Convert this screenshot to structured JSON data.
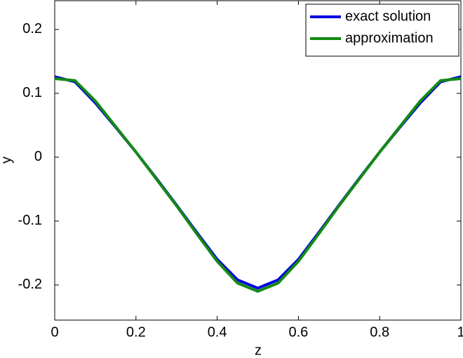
{
  "chart_data": {
    "type": "line",
    "x_label": "z",
    "y_label": "y",
    "x": [
      0,
      0.05,
      0.1,
      0.15,
      0.2,
      0.25,
      0.3,
      0.35,
      0.4,
      0.45,
      0.5,
      0.55,
      0.6,
      0.65,
      0.7,
      0.75,
      0.8,
      0.85,
      0.9,
      0.95,
      1
    ],
    "series": [
      {
        "name": "exact solution",
        "color": "#0000e0",
        "values": [
          0.126,
          0.118,
          0.085,
          0.047,
          0.008,
          -0.033,
          -0.075,
          -0.118,
          -0.16,
          -0.192,
          -0.205,
          -0.192,
          -0.16,
          -0.118,
          -0.075,
          -0.033,
          0.008,
          0.047,
          0.085,
          0.118,
          0.126
        ]
      },
      {
        "name": "approximation",
        "color": "#138a13",
        "values": [
          0.123,
          0.12,
          0.088,
          0.048,
          0.008,
          -0.034,
          -0.076,
          -0.12,
          -0.163,
          -0.197,
          -0.21,
          -0.197,
          -0.163,
          -0.12,
          -0.076,
          -0.034,
          0.008,
          0.048,
          0.088,
          0.12,
          0.123
        ]
      }
    ],
    "xlim": [
      0,
      1
    ],
    "xticks": [
      0,
      0.2,
      0.4,
      0.6,
      0.8,
      1
    ],
    "ylim": [
      -0.255,
      0.245
    ],
    "yticks": [
      -0.2,
      -0.1,
      0,
      0.1,
      0.2
    ],
    "legend": "upper right",
    "grid": false
  }
}
